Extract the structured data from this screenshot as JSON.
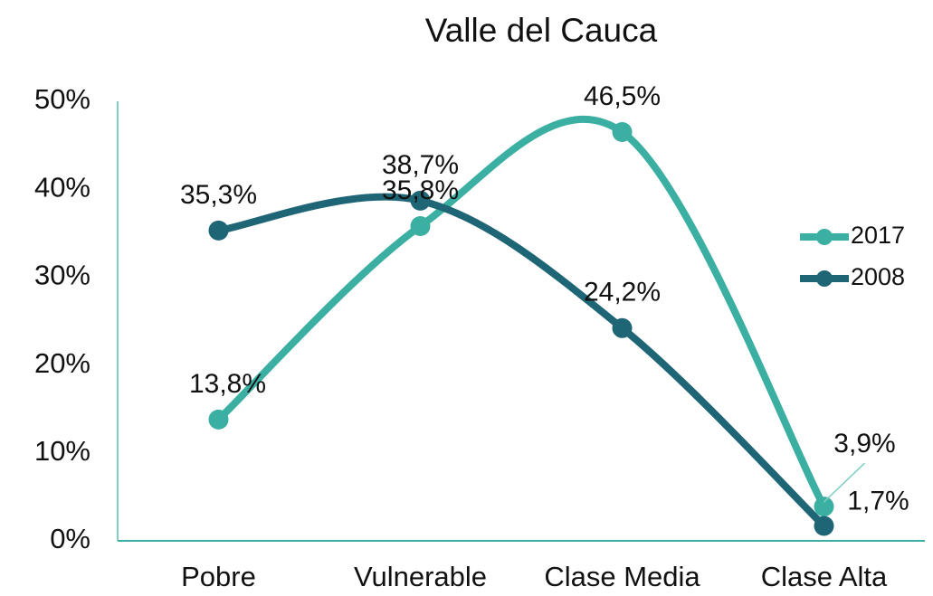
{
  "chart_data": {
    "type": "line",
    "title": "Valle del Cauca",
    "smooth": true,
    "categories": [
      "Pobre",
      "Vulnerable",
      "Clase Media",
      "Clase Alta"
    ],
    "series": [
      {
        "name": "2017",
        "color": "#3aafa2",
        "values": [
          13.8,
          35.8,
          46.5,
          3.9
        ],
        "value_labels": [
          "13,8%",
          "35,8%",
          "46,5%",
          "3,9%"
        ]
      },
      {
        "name": "2008",
        "color": "#1e6576",
        "values": [
          35.3,
          38.7,
          24.2,
          1.7
        ],
        "value_labels": [
          "35,3%",
          "38,7%",
          "24,2%",
          "1,7%"
        ]
      }
    ],
    "ylim": [
      0,
      50
    ],
    "yticks": [
      {
        "value": 0,
        "label": "0%"
      },
      {
        "value": 10,
        "label": "10%"
      },
      {
        "value": 20,
        "label": "20%"
      },
      {
        "value": 30,
        "label": "30%"
      },
      {
        "value": 40,
        "label": "40%"
      },
      {
        "value": 50,
        "label": "50%"
      }
    ],
    "legend": "right",
    "grid": false
  }
}
